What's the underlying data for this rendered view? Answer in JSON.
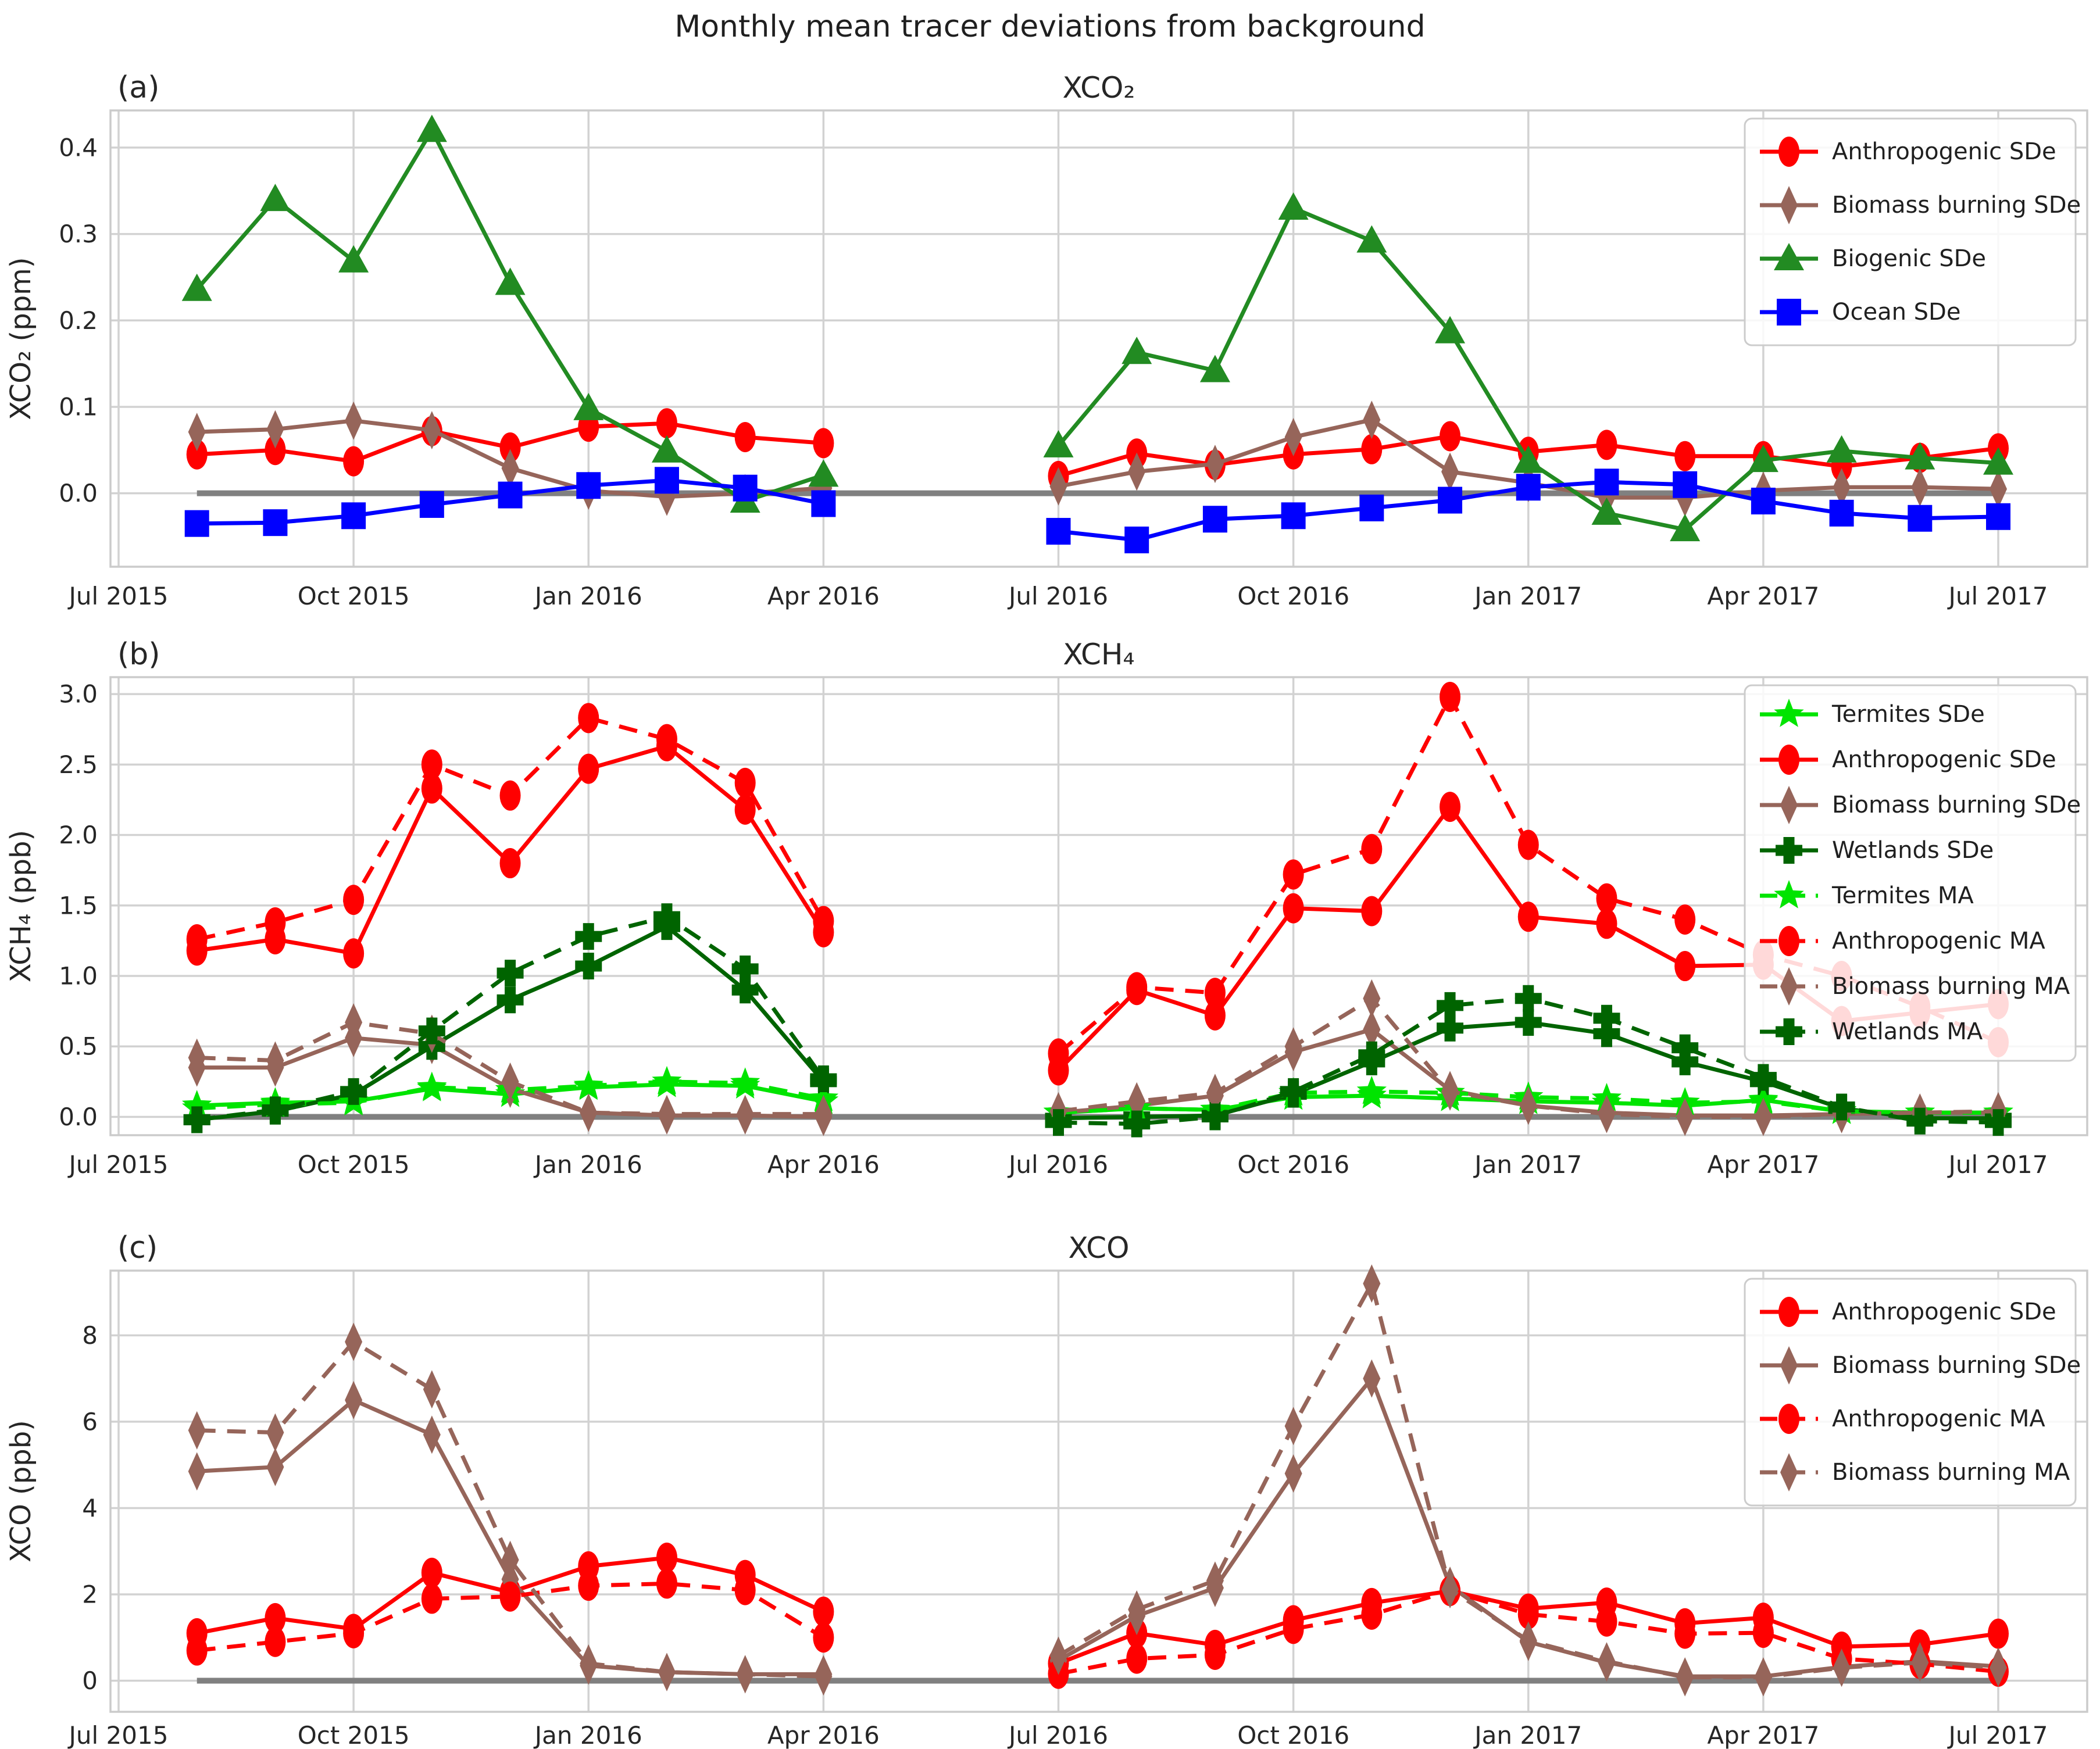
{
  "title": "Monthly mean tracer deviations from background",
  "colors": {
    "red": "#ff0000",
    "brown": "#96655a",
    "green": "#228b22",
    "blue": "#0000ff",
    "lime": "#00e400",
    "darkgreen": "#006400",
    "zero_line": "#808080",
    "grid": "#d2d2d2",
    "spine": "#cbcbcb",
    "text": "#262626"
  },
  "x_axis": {
    "tick_labels": [
      "Jul 2015",
      "Oct 2015",
      "Jan 2016",
      "Apr 2016",
      "Jul 2016",
      "Oct 2016",
      "Jan 2017",
      "Apr 2017",
      "Jul 2017"
    ],
    "tick_positions_months": [
      0,
      3,
      6,
      9,
      12,
      15,
      18,
      21,
      24
    ]
  },
  "months_period1": [
    "Aug 2015",
    "Sep 2015",
    "Oct 2015",
    "Nov 2015",
    "Dec 2015",
    "Jan 2016",
    "Feb 2016",
    "Mar 2016",
    "Apr 2016"
  ],
  "months_period2": [
    "Jul 2016",
    "Aug 2016",
    "Sep 2016",
    "Oct 2016",
    "Nov 2016",
    "Dec 2016",
    "Jan 2017",
    "Feb 2017",
    "Mar 2017",
    "Apr 2017",
    "May 2017",
    "Jun 2017",
    "Jul 2017"
  ],
  "chart_data": [
    {
      "type": "line",
      "panel_label": "(a)",
      "title": "XCO₂",
      "ylabel": "XCO₂ (ppm)",
      "ylim": [
        -0.085,
        0.443
      ],
      "yticks": [
        0.0,
        0.1,
        0.2,
        0.3,
        0.4
      ],
      "ytick_labels": [
        "0.0",
        "0.1",
        "0.2",
        "0.3",
        "0.4"
      ],
      "grid": true,
      "legend_position": "upper right",
      "series": [
        {
          "name": "Anthropogenic SDe",
          "color": "red",
          "marker": "circle",
          "dash": false,
          "y1": [
            0.045,
            0.05,
            0.037,
            0.072,
            0.053,
            0.077,
            0.081,
            0.065,
            0.058
          ],
          "y2": [
            0.02,
            0.046,
            0.033,
            0.045,
            0.051,
            0.066,
            0.048,
            0.056,
            0.043,
            0.043,
            0.031,
            0.041,
            0.052
          ]
        },
        {
          "name": "Biomass burning SDe",
          "color": "brown",
          "marker": "diamond",
          "dash": false,
          "y1": [
            0.071,
            0.074,
            0.084,
            0.073,
            0.029,
            0.003,
            -0.004,
            0.0,
            0.006
          ],
          "y2": [
            0.008,
            0.025,
            0.034,
            0.065,
            0.085,
            0.025,
            0.012,
            -0.005,
            -0.005,
            0.003,
            0.007,
            0.007,
            0.005
          ]
        },
        {
          "name": "Biogenic SDe",
          "color": "green",
          "marker": "triangle",
          "dash": false,
          "y1": [
            0.236,
            0.34,
            0.269,
            0.42,
            0.243,
            0.098,
            0.049,
            -0.009,
            0.021
          ],
          "y2": [
            0.055,
            0.163,
            0.142,
            0.33,
            0.292,
            0.187,
            0.037,
            -0.023,
            -0.042,
            0.038,
            0.049,
            0.041,
            0.035
          ]
        },
        {
          "name": "Ocean SDe",
          "color": "blue",
          "marker": "square",
          "dash": false,
          "y1": [
            -0.035,
            -0.034,
            -0.026,
            -0.013,
            -0.002,
            0.009,
            0.015,
            0.006,
            -0.012
          ],
          "y2": [
            -0.044,
            -0.054,
            -0.03,
            -0.026,
            -0.017,
            -0.008,
            0.007,
            0.013,
            0.01,
            -0.009,
            -0.023,
            -0.029,
            -0.027
          ]
        }
      ]
    },
    {
      "type": "line",
      "panel_label": "(b)",
      "title": "XCH₄",
      "ylabel": "XCH₄ (ppb)",
      "ylim": [
        -0.13,
        3.12
      ],
      "yticks": [
        0.0,
        0.5,
        1.0,
        1.5,
        2.0,
        2.5,
        3.0
      ],
      "ytick_labels": [
        "0.0",
        "0.5",
        "1.0",
        "1.5",
        "2.0",
        "2.5",
        "3.0"
      ],
      "grid": true,
      "legend_position": "upper right",
      "series": [
        {
          "name": "Termites SDe",
          "color": "lime",
          "marker": "star",
          "dash": false,
          "y1": [
            0.08,
            0.1,
            0.11,
            0.2,
            0.16,
            0.21,
            0.23,
            0.22,
            0.11
          ],
          "y2": [
            0.03,
            0.06,
            0.05,
            0.14,
            0.15,
            0.13,
            0.11,
            0.1,
            0.08,
            0.12,
            0.04,
            0.03,
            0.03
          ]
        },
        {
          "name": "Anthropogenic SDe",
          "color": "red",
          "marker": "circle",
          "dash": false,
          "y1": [
            1.18,
            1.26,
            1.16,
            2.33,
            1.8,
            2.47,
            2.63,
            2.18,
            1.31
          ],
          "y2": [
            0.33,
            0.9,
            0.72,
            1.48,
            1.46,
            2.2,
            1.42,
            1.37,
            1.07,
            1.08,
            0.68,
            0.74,
            0.8
          ]
        },
        {
          "name": "Biomass burning SDe",
          "color": "brown",
          "marker": "diamond",
          "dash": false,
          "y1": [
            0.35,
            0.35,
            0.56,
            0.51,
            0.2,
            0.03,
            0.01,
            0.01,
            0.0
          ],
          "y2": [
            0.03,
            0.08,
            0.15,
            0.46,
            0.62,
            0.19,
            0.08,
            0.03,
            0.01,
            0.01,
            0.02,
            0.03,
            0.03
          ]
        },
        {
          "name": "Wetlands SDe",
          "color": "darkgreen",
          "marker": "plus",
          "dash": false,
          "y1": [
            -0.02,
            0.04,
            0.16,
            0.5,
            0.83,
            1.07,
            1.35,
            0.9,
            0.25
          ],
          "y2": [
            -0.01,
            0.0,
            0.01,
            0.16,
            0.39,
            0.63,
            0.67,
            0.59,
            0.39,
            0.25,
            0.06,
            -0.01,
            -0.01
          ]
        },
        {
          "name": "Termites MA",
          "color": "lime",
          "marker": "star",
          "dash": true,
          "y1": [
            0.06,
            0.09,
            0.1,
            0.21,
            0.19,
            0.22,
            0.25,
            0.24,
            0.13
          ],
          "y2": [
            0.03,
            0.06,
            0.05,
            0.17,
            0.18,
            0.17,
            0.14,
            0.13,
            0.1,
            0.11,
            0.04,
            0.03,
            0.03
          ]
        },
        {
          "name": "Anthropogenic MA",
          "color": "red",
          "marker": "circle",
          "dash": true,
          "y1": [
            1.26,
            1.38,
            1.54,
            2.5,
            2.28,
            2.83,
            2.68,
            2.37,
            1.39
          ],
          "y2": [
            0.45,
            0.92,
            0.88,
            1.72,
            1.9,
            2.98,
            1.93,
            1.55,
            1.4,
            1.15,
            1.0,
            0.78,
            0.53
          ]
        },
        {
          "name": "Biomass burning MA",
          "color": "brown",
          "marker": "diamond",
          "dash": true,
          "y1": [
            0.42,
            0.4,
            0.67,
            0.59,
            0.25,
            0.03,
            0.02,
            0.02,
            0.02
          ],
          "y2": [
            0.04,
            0.11,
            0.17,
            0.5,
            0.84,
            0.18,
            0.08,
            0.02,
            0.0,
            0.0,
            0.02,
            0.03,
            0.04
          ]
        },
        {
          "name": "Wetlands MA",
          "color": "darkgreen",
          "marker": "plus",
          "dash": true,
          "y1": [
            -0.02,
            0.05,
            0.18,
            0.61,
            1.02,
            1.28,
            1.42,
            1.05,
            0.27
          ],
          "y2": [
            -0.04,
            -0.05,
            0.0,
            0.18,
            0.44,
            0.79,
            0.84,
            0.7,
            0.49,
            0.28,
            0.07,
            -0.03,
            -0.04
          ]
        }
      ]
    },
    {
      "type": "line",
      "panel_label": "(c)",
      "title": "XCO",
      "ylabel": "XCO (ppb)",
      "ylim": [
        -0.72,
        9.5
      ],
      "yticks": [
        0,
        2,
        4,
        6,
        8
      ],
      "ytick_labels": [
        "0",
        "2",
        "4",
        "6",
        "8"
      ],
      "grid": true,
      "legend_position": "upper right",
      "series": [
        {
          "name": "Anthropogenic SDe",
          "color": "red",
          "marker": "circle",
          "dash": false,
          "y1": [
            1.1,
            1.45,
            1.2,
            2.5,
            2.05,
            2.65,
            2.85,
            2.45,
            1.6
          ],
          "y2": [
            0.4,
            1.1,
            0.83,
            1.4,
            1.8,
            2.08,
            1.67,
            1.81,
            1.33,
            1.46,
            0.79,
            0.84,
            1.09
          ]
        },
        {
          "name": "Biomass burning SDe",
          "color": "brown",
          "marker": "diamond",
          "dash": false,
          "y1": [
            4.85,
            4.95,
            6.5,
            5.7,
            2.35,
            0.35,
            0.2,
            0.15,
            0.15
          ],
          "y2": [
            0.47,
            1.5,
            2.15,
            4.8,
            7.0,
            2.2,
            0.9,
            0.42,
            0.1,
            0.1,
            0.32,
            0.45,
            0.33
          ]
        },
        {
          "name": "Anthropogenic MA",
          "color": "red",
          "marker": "circle",
          "dash": true,
          "y1": [
            0.7,
            0.9,
            1.1,
            1.9,
            1.95,
            2.2,
            2.25,
            2.1,
            1.0
          ],
          "y2": [
            0.16,
            0.51,
            0.6,
            1.2,
            1.53,
            2.08,
            1.54,
            1.37,
            1.09,
            1.11,
            0.51,
            0.39,
            0.21
          ]
        },
        {
          "name": "Biomass burning MA",
          "color": "brown",
          "marker": "diamond",
          "dash": true,
          "y1": [
            5.8,
            5.75,
            7.85,
            6.75,
            2.8,
            0.4,
            0.2,
            0.15,
            0.1
          ],
          "y2": [
            0.58,
            1.65,
            2.32,
            5.9,
            9.2,
            2.12,
            0.93,
            0.45,
            0.08,
            0.08,
            0.3,
            0.42,
            0.3
          ]
        }
      ]
    }
  ]
}
